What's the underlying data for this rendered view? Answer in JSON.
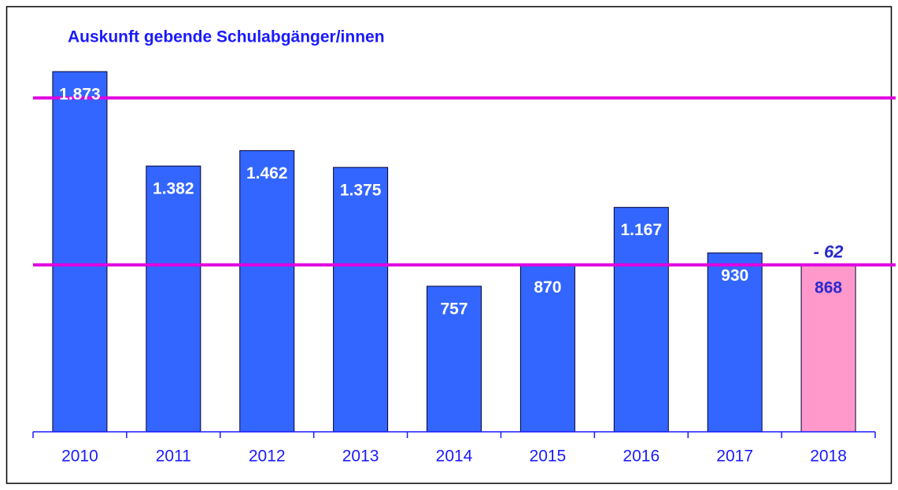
{
  "chart_data": {
    "type": "bar",
    "title": "Auskunft gebende Schulabgänger/innen",
    "categories": [
      "2010",
      "2011",
      "2012",
      "2013",
      "2014",
      "2015",
      "2016",
      "2017",
      "2018"
    ],
    "values": [
      1873,
      1382,
      1462,
      1375,
      757,
      870,
      1167,
      930,
      868
    ],
    "value_labels": [
      "1.873",
      "1.382",
      "1.462",
      "1.375",
      "757",
      "870",
      "1.167",
      "930",
      "868"
    ],
    "colors": [
      "#3366ff",
      "#3366ff",
      "#3366ff",
      "#3366ff",
      "#3366ff",
      "#3366ff",
      "#3366ff",
      "#3366ff",
      "#ff99cc"
    ],
    "value_label_colors": [
      "#ffffff",
      "#ffffff",
      "#ffffff",
      "#ffffff",
      "#ffffff",
      "#ffffff",
      "#ffffff",
      "#ffffff",
      "#2a2acc"
    ],
    "annotation": {
      "text": "- 62",
      "category": 8
    },
    "reference_lines": [
      868,
      1736
    ],
    "reference_line_color": "#e000e0",
    "ylim": [
      0,
      2000
    ]
  }
}
